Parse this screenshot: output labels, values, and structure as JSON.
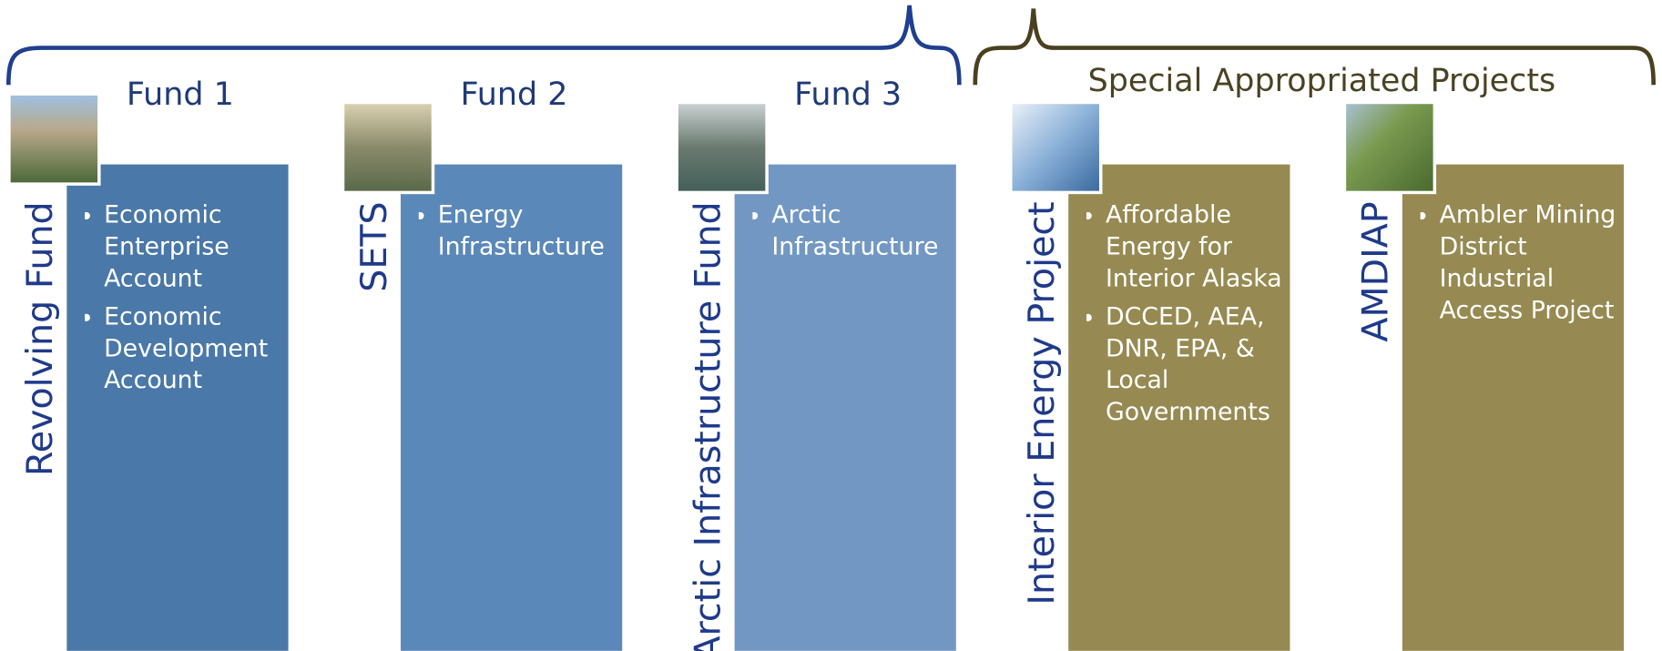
{
  "special_heading": "Special Appropriated Projects",
  "columns": [
    {
      "heading": "Fund 1",
      "name": "Revolving Fund",
      "bullets": [
        "Economic Enterprise Account",
        "Economic Development Account"
      ]
    },
    {
      "heading": "Fund 2",
      "name": "SETS",
      "bullets": [
        "Energy Infrastructure"
      ]
    },
    {
      "heading": "Fund 3",
      "name": "Arctic Infrastructure Fund",
      "bullets": [
        "Arctic Infrastructure"
      ]
    },
    {
      "heading": null,
      "name": "Interior Energy Project",
      "bullets": [
        "Affordable Energy for Interior Alaska",
        "DCCED, AEA, DNR, EPA, & Local Governments"
      ]
    },
    {
      "heading": null,
      "name": "AMDIAP",
      "bullets": [
        "Ambler Mining District Industrial Access Project"
      ]
    }
  ]
}
